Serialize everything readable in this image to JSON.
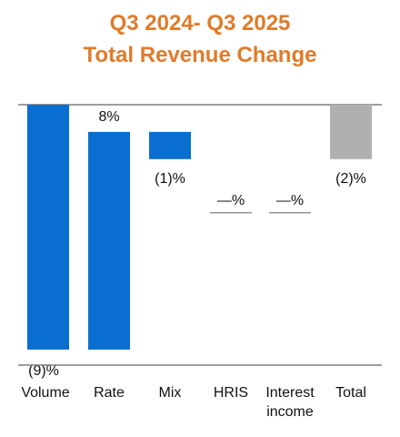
{
  "chart_data": {
    "type": "bar",
    "subtype": "waterfall",
    "title": "Q3 2024- Q3 2025",
    "subtitle": "Total Revenue Change",
    "categories": [
      "Volume",
      "Rate",
      "Mix",
      "HRIS",
      "Interest income",
      "Total"
    ],
    "category_lines": [
      [
        "Volume"
      ],
      [
        "Rate"
      ],
      [
        "Mix"
      ],
      [
        "HRIS"
      ],
      [
        "Interest",
        "income"
      ],
      [
        "Total"
      ]
    ],
    "values": [
      -9,
      8,
      -1,
      0,
      0,
      -2
    ],
    "value_labels": [
      "(9)%",
      "8%",
      "(1)%",
      "—%",
      "—%",
      "(2)%"
    ],
    "value_unit": "%",
    "ylim": [
      -9,
      0
    ],
    "grid": false,
    "legend": "none"
  },
  "colors": {
    "title": "#e07b2a",
    "bar": "#0a6ed1",
    "total_bar": "#b0b0b0",
    "axis_line": "#7f7f7f",
    "text": "#111111"
  }
}
